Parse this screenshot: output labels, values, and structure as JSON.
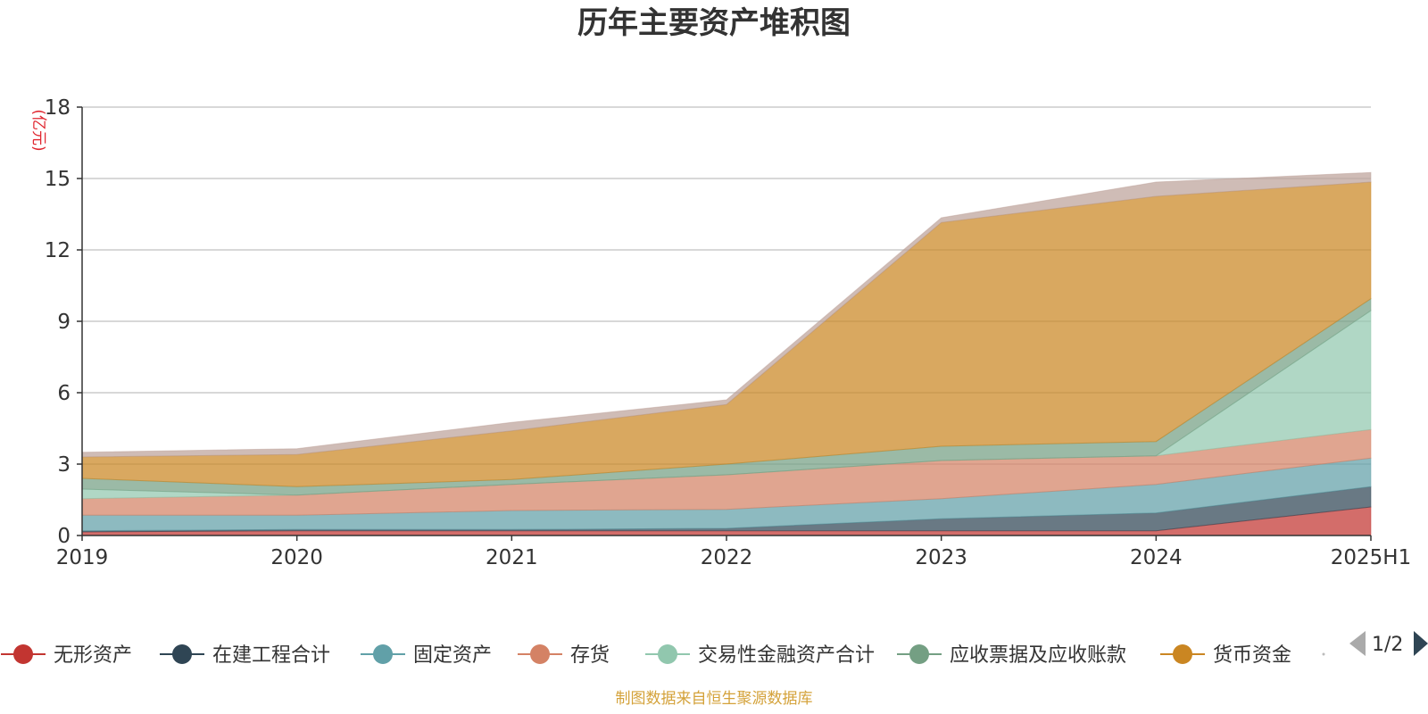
{
  "chart_data": {
    "type": "area",
    "stacked": true,
    "title": "历年主要资产堆积图",
    "unit_label": "(亿元)",
    "x": [
      "2019",
      "2020",
      "2021",
      "2022",
      "2023",
      "2024",
      "2025H1"
    ],
    "ylim": [
      0,
      18
    ],
    "yticks": [
      0,
      3,
      6,
      9,
      12,
      15,
      18
    ],
    "grid": true,
    "legend_position": "bottom",
    "series": [
      {
        "name": "无形资产",
        "color": "#c23531",
        "values": [
          0.15,
          0.2,
          0.2,
          0.2,
          0.2,
          0.2,
          1.2
        ]
      },
      {
        "name": "在建工程合计",
        "color": "#2f4554",
        "values": [
          0.05,
          0.05,
          0.05,
          0.1,
          0.5,
          0.75,
          0.85
        ]
      },
      {
        "name": "固定资产",
        "color": "#61a0a8",
        "values": [
          0.65,
          0.6,
          0.8,
          0.8,
          0.85,
          1.2,
          1.2
        ]
      },
      {
        "name": "存货",
        "color": "#d48265",
        "values": [
          0.7,
          0.85,
          1.1,
          1.45,
          1.6,
          1.2,
          1.2
        ]
      },
      {
        "name": "交易性金融资产合计",
        "color": "#91c7ae",
        "values": [
          0.4,
          0.0,
          0.0,
          0.0,
          0.0,
          0.0,
          5.0
        ]
      },
      {
        "name": "应收票据及应收账款",
        "color": "#749f83",
        "values": [
          0.45,
          0.35,
          0.2,
          0.45,
          0.6,
          0.6,
          0.5
        ]
      },
      {
        "name": "货币资金",
        "color": "#ca8622",
        "values": [
          0.9,
          1.35,
          2.05,
          2.5,
          9.4,
          10.3,
          4.9
        ]
      },
      {
        "name": "",
        "color": "#bda29a",
        "values": [
          0.2,
          0.25,
          0.35,
          0.2,
          0.2,
          0.6,
          0.4
        ]
      }
    ]
  },
  "legend": {
    "items": [
      "无形资产",
      "在建工程合计",
      "固定资产",
      "存货",
      "交易性金融资产合计",
      "应收票据及应收账款",
      "货币资金"
    ],
    "page": "1/2"
  },
  "source": "制图数据来自恒生聚源数据库"
}
